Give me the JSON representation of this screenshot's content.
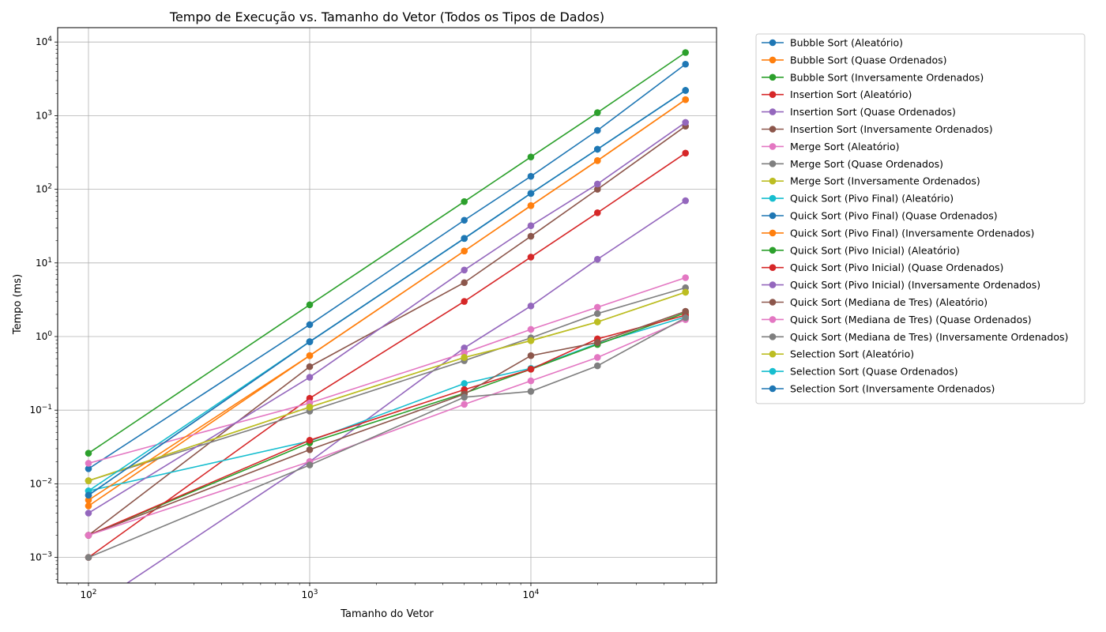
{
  "chart_data": {
    "type": "line",
    "title": "Tempo de Execução vs. Tamanho do Vetor (Todos os Tipos de Dados)",
    "xlabel": "Tamanho do Vetor",
    "ylabel": "Tempo (ms)",
    "x_scale": "log",
    "y_scale": "log",
    "x_ticks": [
      {
        "value": 100,
        "base": "10",
        "exp": "2"
      },
      {
        "value": 1000,
        "base": "10",
        "exp": "3"
      },
      {
        "value": 10000,
        "base": "10",
        "exp": "4"
      }
    ],
    "y_ticks": [
      {
        "value": 0.001,
        "base": "10",
        "exp": "−3"
      },
      {
        "value": 0.01,
        "base": "10",
        "exp": "−2"
      },
      {
        "value": 0.1,
        "base": "10",
        "exp": "−1"
      },
      {
        "value": 1,
        "base": "10",
        "exp": "0"
      },
      {
        "value": 10,
        "base": "10",
        "exp": "1"
      },
      {
        "value": 100,
        "base": "10",
        "exp": "2"
      },
      {
        "value": 1000,
        "base": "10",
        "exp": "3"
      },
      {
        "value": 10000,
        "base": "10",
        "exp": "4"
      }
    ],
    "grid": true,
    "legend_position": "outside-right",
    "x": [
      100,
      1000,
      5000,
      10000,
      20000,
      50000
    ],
    "series": [
      {
        "name": "Bubble Sort (Aleatório)",
        "color": "#1f77b4",
        "values": [
          0.016,
          1.45,
          38,
          150,
          630,
          5000
        ]
      },
      {
        "name": "Bubble Sort (Quase Ordenados)",
        "color": "#ff7f0e",
        "values": [
          0.005,
          0.55,
          14.5,
          60,
          245,
          1650
        ]
      },
      {
        "name": "Bubble Sort (Inversamente Ordenados)",
        "color": "#2ca02c",
        "values": [
          0.026,
          2.7,
          68,
          275,
          1100,
          7200
        ]
      },
      {
        "name": "Insertion Sort (Aleatório)",
        "color": "#d62728",
        "values": [
          0.001,
          0.145,
          3.0,
          12,
          48,
          310
        ]
      },
      {
        "name": "Insertion Sort (Quase Ordenados)",
        "color": "#9467bd",
        "values": [
          0.0002,
          0.02,
          0.7,
          2.6,
          11.2,
          70
        ]
      },
      {
        "name": "Insertion Sort (Inversamente Ordenados)",
        "color": "#8c564b",
        "values": [
          0.002,
          0.39,
          5.4,
          23,
          100,
          720
        ]
      },
      {
        "name": "Merge Sort (Aleatório)",
        "color": "#e377c2",
        "values": [
          0.019,
          0.125,
          0.6,
          1.25,
          2.5,
          6.3
        ]
      },
      {
        "name": "Merge Sort (Quase Ordenados)",
        "color": "#7f7f7f",
        "values": [
          0.011,
          0.097,
          0.47,
          0.96,
          2.05,
          4.6
        ]
      },
      {
        "name": "Merge Sort (Inversamente Ordenados)",
        "color": "#bcbd22",
        "values": [
          0.011,
          0.11,
          0.52,
          0.88,
          1.58,
          4.0
        ]
      },
      {
        "name": "Quick Sort (Pivo Final) (Aleatório)",
        "color": "#17becf",
        "values": [
          0.008,
          0.038,
          0.23,
          0.37,
          0.8,
          1.85
        ]
      },
      {
        "name": "Quick Sort (Pivo Final) (Quase Ordenados)",
        "color": "#1f77b4",
        "values": [
          0.007,
          0.85,
          21.5,
          88,
          350,
          2200
        ]
      },
      {
        "name": "Quick Sort (Pivo Final) (Inversamente Ordenados)",
        "color": "#ff7f0e",
        "values": [
          0.006,
          0.55,
          14.5,
          60,
          245,
          1650
        ]
      },
      {
        "name": "Quick Sort (Pivo Inicial) (Aleatório)",
        "color": "#2ca02c",
        "values": [
          0.002,
          0.036,
          0.17,
          0.36,
          0.78,
          2.1
        ]
      },
      {
        "name": "Quick Sort (Pivo Inicial) (Quase Ordenados)",
        "color": "#d62728",
        "values": [
          0.002,
          0.039,
          0.19,
          0.36,
          0.93,
          1.95
        ]
      },
      {
        "name": "Quick Sort (Pivo Inicial) (Inversamente Ordenados)",
        "color": "#9467bd",
        "values": [
          0.004,
          0.28,
          8.0,
          32,
          118,
          810
        ]
      },
      {
        "name": "Quick Sort (Mediana de Tres) (Aleatório)",
        "color": "#8c564b",
        "values": [
          0.002,
          0.029,
          0.165,
          0.55,
          0.83,
          2.2
        ]
      },
      {
        "name": "Quick Sort (Mediana de Tres) (Quase Ordenados)",
        "color": "#e377c2",
        "values": [
          0.002,
          0.02,
          0.12,
          0.25,
          0.52,
          1.7
        ]
      },
      {
        "name": "Quick Sort (Mediana de Tres) (Inversamente Ordenados)",
        "color": "#7f7f7f",
        "values": [
          0.001,
          0.018,
          0.15,
          0.18,
          0.4,
          1.8
        ]
      },
      {
        "name": "Selection Sort (Aleatório)",
        "color": "#bcbd22",
        "values": [
          0.011,
          0.11,
          0.52,
          0.88,
          1.58,
          4.0
        ]
      },
      {
        "name": "Selection Sort (Quase Ordenados)",
        "color": "#17becf",
        "values": [
          0.008,
          0.85,
          21.5,
          88,
          350,
          2200
        ]
      },
      {
        "name": "Selection Sort (Inversamente Ordenados)",
        "color": "#1f77b4",
        "values": [
          0.007,
          0.85,
          21.5,
          88,
          350,
          2200
        ]
      }
    ]
  }
}
